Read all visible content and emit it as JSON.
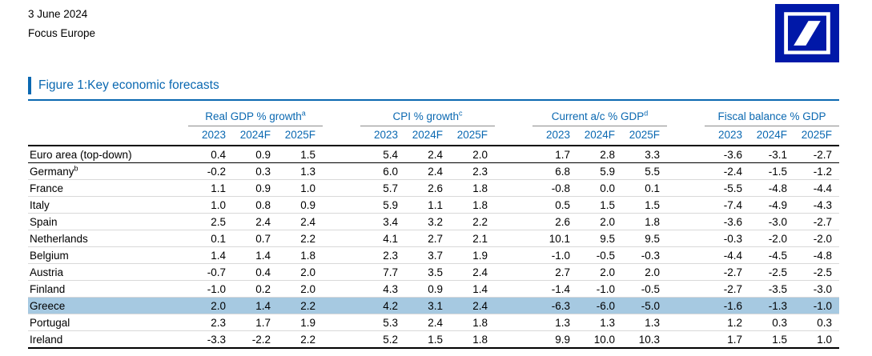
{
  "header": {
    "date": "3 June 2024",
    "publication": "Focus Europe"
  },
  "logo": {
    "label": "Deutsche Bank logo",
    "color": "#0018A8"
  },
  "figure": {
    "title": "Figure 1:Key economic forecasts"
  },
  "table": {
    "column_groups": [
      {
        "label": "Real GDP % growth",
        "footnote": "a"
      },
      {
        "label": "CPI % growth",
        "footnote": "c"
      },
      {
        "label": "Current a/c % GDP",
        "footnote": "d"
      },
      {
        "label": "Fiscal balance % GDP",
        "footnote": ""
      }
    ],
    "year_columns": [
      "2023",
      "2024F",
      "2025F"
    ],
    "rows": [
      {
        "label": "Euro area (top-down)",
        "footnote": "",
        "emphasis": true,
        "highlight": false,
        "values": [
          "0.4",
          "0.9",
          "1.5",
          "5.4",
          "2.4",
          "2.0",
          "1.7",
          "2.8",
          "3.3",
          "-3.6",
          "-3.1",
          "-2.7"
        ]
      },
      {
        "label": "Germany",
        "footnote": "b",
        "emphasis": false,
        "highlight": false,
        "values": [
          "-0.2",
          "0.3",
          "1.3",
          "6.0",
          "2.4",
          "2.3",
          "6.8",
          "5.9",
          "5.5",
          "-2.4",
          "-1.5",
          "-1.2"
        ]
      },
      {
        "label": "France",
        "footnote": "",
        "emphasis": false,
        "highlight": false,
        "values": [
          "1.1",
          "0.9",
          "1.0",
          "5.7",
          "2.6",
          "1.8",
          "-0.8",
          "0.0",
          "0.1",
          "-5.5",
          "-4.8",
          "-4.4"
        ]
      },
      {
        "label": "Italy",
        "footnote": "",
        "emphasis": false,
        "highlight": false,
        "values": [
          "1.0",
          "0.8",
          "0.9",
          "5.9",
          "1.1",
          "1.8",
          "0.5",
          "1.5",
          "1.5",
          "-7.4",
          "-4.9",
          "-4.3"
        ]
      },
      {
        "label": "Spain",
        "footnote": "",
        "emphasis": false,
        "highlight": false,
        "values": [
          "2.5",
          "2.4",
          "2.4",
          "3.4",
          "3.2",
          "2.2",
          "2.6",
          "2.0",
          "1.8",
          "-3.6",
          "-3.0",
          "-2.7"
        ]
      },
      {
        "label": "Netherlands",
        "footnote": "",
        "emphasis": false,
        "highlight": false,
        "values": [
          "0.1",
          "0.7",
          "2.2",
          "4.1",
          "2.7",
          "2.1",
          "10.1",
          "9.5",
          "9.5",
          "-0.3",
          "-2.0",
          "-2.0"
        ]
      },
      {
        "label": "Belgium",
        "footnote": "",
        "emphasis": false,
        "highlight": false,
        "values": [
          "1.4",
          "1.4",
          "1.8",
          "2.3",
          "3.7",
          "1.9",
          "-1.0",
          "-0.5",
          "-0.3",
          "-4.4",
          "-4.5",
          "-4.8"
        ]
      },
      {
        "label": "Austria",
        "footnote": "",
        "emphasis": false,
        "highlight": false,
        "values": [
          "-0.7",
          "0.4",
          "2.0",
          "7.7",
          "3.5",
          "2.4",
          "2.7",
          "2.0",
          "2.0",
          "-2.7",
          "-2.5",
          "-2.5"
        ]
      },
      {
        "label": "Finland",
        "footnote": "",
        "emphasis": false,
        "highlight": false,
        "values": [
          "-1.0",
          "0.2",
          "2.0",
          "4.3",
          "0.9",
          "1.4",
          "-1.4",
          "-1.0",
          "-0.5",
          "-2.7",
          "-3.5",
          "-3.0"
        ]
      },
      {
        "label": "Greece",
        "footnote": "",
        "emphasis": false,
        "highlight": true,
        "values": [
          "2.0",
          "1.4",
          "2.2",
          "4.2",
          "3.1",
          "2.4",
          "-6.3",
          "-6.0",
          "-5.0",
          "-1.6",
          "-1.3",
          "-1.0"
        ]
      },
      {
        "label": "Portugal",
        "footnote": "",
        "emphasis": false,
        "highlight": false,
        "values": [
          "2.3",
          "1.7",
          "1.9",
          "5.3",
          "2.4",
          "1.8",
          "1.3",
          "1.3",
          "1.3",
          "1.2",
          "0.3",
          "0.3"
        ]
      },
      {
        "label": "Ireland",
        "footnote": "",
        "emphasis": false,
        "highlight": false,
        "values": [
          "-3.3",
          "-2.2",
          "2.2",
          "5.2",
          "1.5",
          "1.8",
          "9.9",
          "10.0",
          "10.3",
          "1.7",
          "1.5",
          "1.0"
        ]
      }
    ]
  },
  "colors": {
    "accent_blue": "#0a68b1",
    "logo_blue": "#0018A8",
    "highlight_row": "#a6c9e1"
  }
}
